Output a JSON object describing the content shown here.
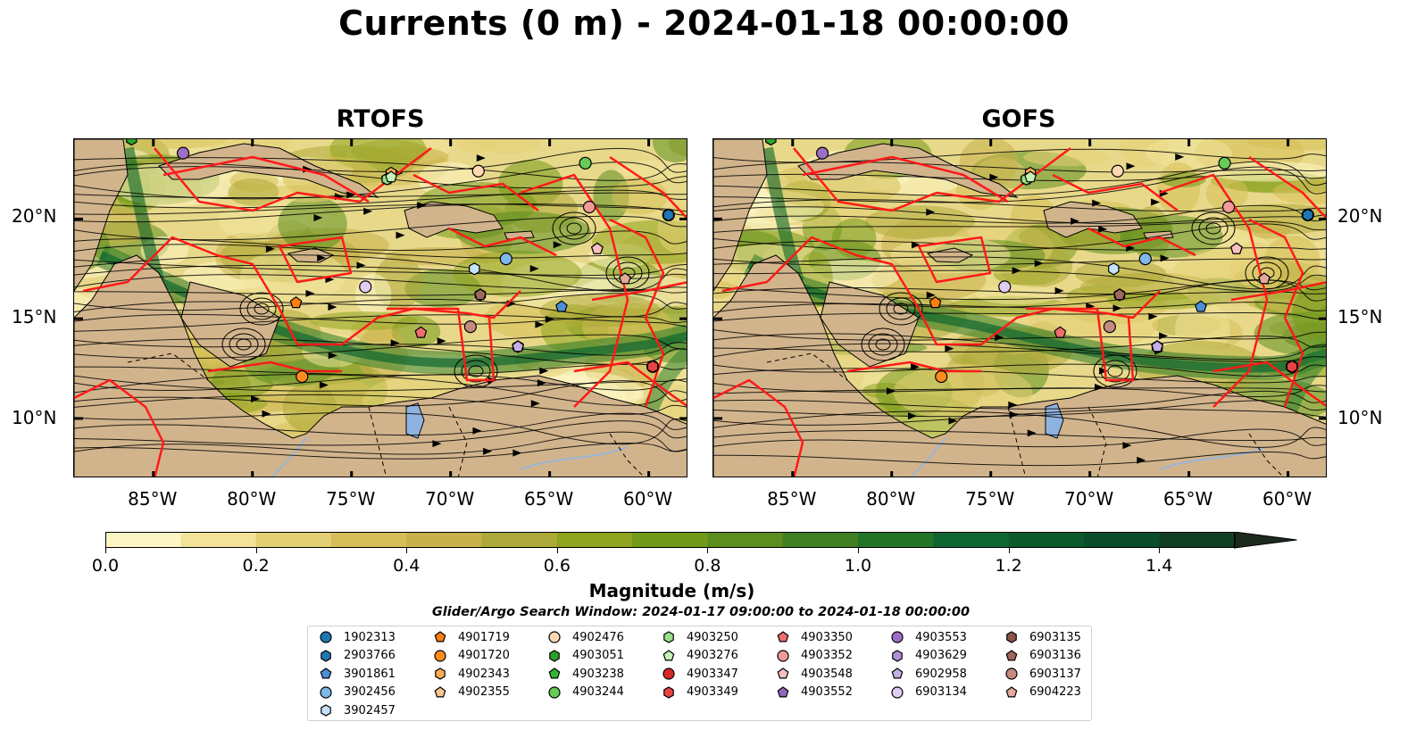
{
  "title": "Currents (0 m) - 2024-01-18 00:00:00",
  "panels": [
    {
      "title": "RTOFS"
    },
    {
      "title": "GOFS"
    }
  ],
  "axes": {
    "y_ticks": [
      "20°N",
      "15°N",
      "10°N"
    ],
    "x_ticks": [
      "85°W",
      "80°W",
      "75°W",
      "70°W",
      "65°W",
      "60°W"
    ]
  },
  "colorbar": {
    "label": "Magnitude (m/s)",
    "ticks": [
      "0.0",
      "0.2",
      "0.4",
      "0.6",
      "0.8",
      "1.0",
      "1.2",
      "1.4"
    ],
    "colors": [
      "#fdf6c4",
      "#f1e39a",
      "#e3cf74",
      "#d6bf58",
      "#c8b04a",
      "#aea93b",
      "#8fa41f",
      "#73991a",
      "#5b8e1f",
      "#408023",
      "#257327",
      "#0f6630",
      "#0a5a2e",
      "#0b4c2a",
      "#103f25",
      "#173322",
      "#1c2a1d"
    ]
  },
  "search_window": "Glider/Argo Search Window: 2024-01-17 09:00:00 to 2024-01-18 00:00:00",
  "chart_data": {
    "type": "heatmap",
    "title": "Currents (0 m) - 2024-01-18 00:00:00",
    "subplots": [
      "RTOFS",
      "GOFS"
    ],
    "variable": "Magnitude (m/s)",
    "overlays": [
      "streamlines",
      "red boundary polygons",
      "glider/argo markers"
    ],
    "xlim": [
      -89,
      -58
    ],
    "ylim": [
      7,
      24
    ],
    "colorbar_range": [
      0.0,
      1.5
    ],
    "floats": [
      {
        "id": "1902313",
        "color": "#1f77b4",
        "shape": "circle",
        "lon": -59,
        "lat": 20.2
      },
      {
        "id": "2903766",
        "color": "#1f77b4",
        "shape": "hexagon",
        "lon": -59,
        "lat": 20.2
      },
      {
        "id": "3901861",
        "color": "#4a90d9",
        "shape": "pentagon",
        "lon": -64.4,
        "lat": 15.6
      },
      {
        "id": "3902456",
        "color": "#7fb8ea",
        "shape": "circle",
        "lon": -67.2,
        "lat": 18.0
      },
      {
        "id": "3902457",
        "color": "#c6e2fa",
        "shape": "hexagon",
        "lon": -68.8,
        "lat": 17.5
      },
      {
        "id": "4901719",
        "color": "#ff7f0e",
        "shape": "pentagon",
        "lon": -77.8,
        "lat": 15.8
      },
      {
        "id": "4901720",
        "color": "#ff8c1a",
        "shape": "circle",
        "lon": -77.5,
        "lat": 12.1
      },
      {
        "id": "4902343",
        "color": "#ffaa55",
        "shape": "hexagon",
        "lon": -73,
        "lat": 22.3
      },
      {
        "id": "4902355",
        "color": "#ffc58c",
        "shape": "pentagon",
        "lon": -62.6,
        "lat": 18.5
      },
      {
        "id": "4902476",
        "color": "#ffd9b3",
        "shape": "circle",
        "lon": -68.6,
        "lat": 22.4
      },
      {
        "id": "4903051",
        "color": "#2ca02c",
        "shape": "hexagon",
        "lon": -86.1,
        "lat": 24.0
      },
      {
        "id": "4903238",
        "color": "#33b533",
        "shape": "pentagon",
        "lon": -73.2,
        "lat": 22.0
      },
      {
        "id": "4903244",
        "color": "#66cc55",
        "shape": "circle",
        "lon": -63.2,
        "lat": 22.8
      },
      {
        "id": "4903250",
        "color": "#98df8a",
        "shape": "hexagon",
        "lon": -73.2,
        "lat": 22.0
      },
      {
        "id": "4903276",
        "color": "#c6f2b8",
        "shape": "pentagon",
        "lon": -73.0,
        "lat": 22.1
      },
      {
        "id": "4903347",
        "color": "#d62728",
        "shape": "circle",
        "lon": -59.8,
        "lat": 12.6
      },
      {
        "id": "4903349",
        "color": "#e84343",
        "shape": "hexagon",
        "lon": -59.8,
        "lat": 12.6
      },
      {
        "id": "4903350",
        "color": "#ee6e6e",
        "shape": "pentagon",
        "lon": -71.5,
        "lat": 14.3
      },
      {
        "id": "4903352",
        "color": "#f29a9a",
        "shape": "circle",
        "lon": -63.0,
        "lat": 20.6
      },
      {
        "id": "4903548",
        "color": "#f7c1c1",
        "shape": "pentagon",
        "lon": -62.6,
        "lat": 18.5
      },
      {
        "id": "4903552",
        "color": "#9467bd",
        "shape": "pentagon",
        "lon": -66.6,
        "lat": 13.6
      },
      {
        "id": "4903553",
        "color": "#9c6fc4",
        "shape": "circle",
        "lon": -83.5,
        "lat": 23.3
      },
      {
        "id": "4903629",
        "color": "#b08fd6",
        "shape": "hexagon",
        "lon": -66.6,
        "lat": 13.6
      },
      {
        "id": "6902958",
        "color": "#c5aee3",
        "shape": "pentagon",
        "lon": -66.6,
        "lat": 13.6
      },
      {
        "id": "6903134",
        "color": "#e0cdf5",
        "shape": "circle",
        "lon": -74.3,
        "lat": 16.6
      },
      {
        "id": "6903135",
        "color": "#8c564b",
        "shape": "hexagon",
        "lon": -68.5,
        "lat": 16.2
      },
      {
        "id": "6903136",
        "color": "#a0685b",
        "shape": "pentagon",
        "lon": -68.5,
        "lat": 16.2
      },
      {
        "id": "6903137",
        "color": "#c48a7e",
        "shape": "circle",
        "lon": -69.0,
        "lat": 14.6
      },
      {
        "id": "6904223",
        "color": "#e3a99b",
        "shape": "pentagon",
        "lon": -61.2,
        "lat": 17.0
      }
    ]
  }
}
